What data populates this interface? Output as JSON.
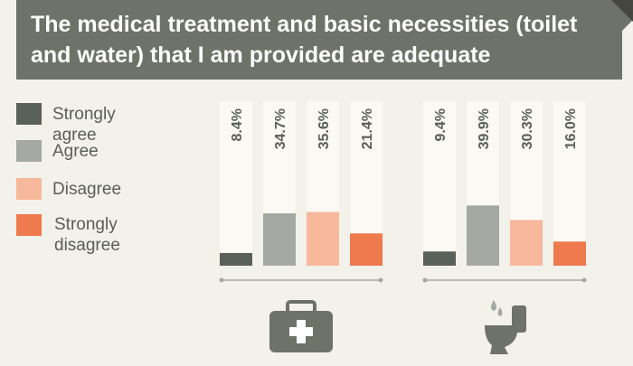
{
  "chart_data": {
    "type": "bar",
    "title": "The medical treatment and basic necessities (toilet and water) that I am provided are adequate",
    "categories": [
      null,
      null
    ],
    "series": [
      {
        "name": "Strongly agree",
        "color": "#5a605a",
        "values": [
          8.4,
          9.4
        ],
        "value_labels": [
          "8.4%",
          "9.4%"
        ]
      },
      {
        "name": "Agree",
        "color": "#a4a9a3",
        "values": [
          34.7,
          39.9
        ],
        "value_labels": [
          "34.7%",
          "39.9%"
        ]
      },
      {
        "name": "Disagree",
        "color": "#f8b89b",
        "values": [
          35.6,
          30.3
        ],
        "value_labels": [
          "35.6%",
          "30.3%"
        ]
      },
      {
        "name": "Strongly disagree",
        "color": "#ee7a4e",
        "values": [
          21.4,
          16.0
        ],
        "value_labels": [
          "21.4%",
          "16.0%"
        ]
      }
    ]
  }
}
